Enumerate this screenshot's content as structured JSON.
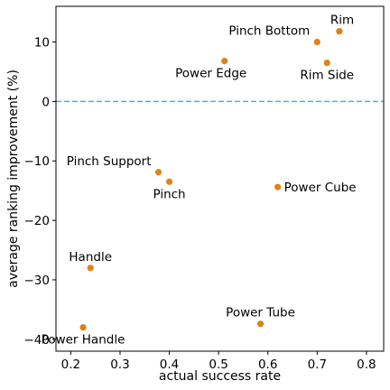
{
  "chart_data": {
    "type": "scatter",
    "title": "",
    "xlabel": "actual success rate",
    "ylabel": "average ranking improvement (%)",
    "xlim": [
      0.17,
      0.835
    ],
    "ylim": [
      -42,
      16
    ],
    "xticks": [
      0.2,
      0.3,
      0.4,
      0.5,
      0.6,
      0.7,
      0.8
    ],
    "xtick_labels": [
      "0.2",
      "0.3",
      "0.4",
      "0.5",
      "0.6",
      "0.7",
      "0.8"
    ],
    "yticks": [
      -40,
      -30,
      -20,
      -10,
      0,
      10
    ],
    "ytick_labels": [
      "−40",
      "−30",
      "−20",
      "−10",
      "0",
      "10"
    ],
    "grid": false,
    "marker_color": "#e08214",
    "reference_line": {
      "y": 0,
      "color": "#3bbfcf",
      "style": "dashed"
    },
    "points": [
      {
        "label": "Rim",
        "x": 0.745,
        "y": 11.8,
        "label_pos": "above-right"
      },
      {
        "label": "Pinch Bottom",
        "x": 0.7,
        "y": 10.0,
        "label_pos": "above-left"
      },
      {
        "label": "Rim Side",
        "x": 0.72,
        "y": 6.5,
        "label_pos": "below-right"
      },
      {
        "label": "Power Edge",
        "x": 0.512,
        "y": 6.8,
        "label_pos": "below-left"
      },
      {
        "label": "Pinch Support",
        "x": 0.378,
        "y": -11.9,
        "label_pos": "above-left"
      },
      {
        "label": "Pinch",
        "x": 0.4,
        "y": -13.5,
        "label_pos": "below-right"
      },
      {
        "label": "Power Cube",
        "x": 0.62,
        "y": -14.4,
        "label_pos": "right"
      },
      {
        "label": "Handle",
        "x": 0.24,
        "y": -28.0,
        "label_pos": "above"
      },
      {
        "label": "Power Handle",
        "x": 0.225,
        "y": -38.0,
        "label_pos": "below-right"
      },
      {
        "label": "Power Tube",
        "x": 0.585,
        "y": -37.4,
        "label_pos": "above"
      }
    ]
  }
}
